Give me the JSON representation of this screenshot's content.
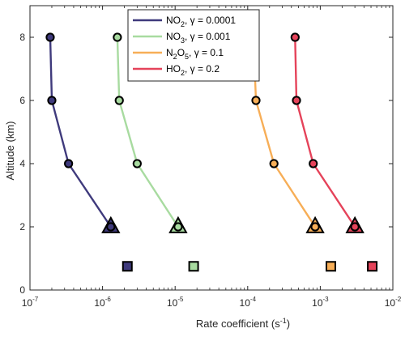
{
  "chart_data": {
    "type": "line",
    "xlabel": "Rate coefficient (s",
    "xlabel_sup": "-1",
    "xlabel_suffix": ")",
    "ylabel": "Altitude (km)",
    "xscale": "log",
    "xlim": [
      1e-07,
      0.01
    ],
    "ylim": [
      0,
      9
    ],
    "x_ticks": [
      {
        "base": "10",
        "exp": "-7"
      },
      {
        "base": "10",
        "exp": "-6"
      },
      {
        "base": "10",
        "exp": "-5"
      },
      {
        "base": "10",
        "exp": "-4"
      },
      {
        "base": "10",
        "exp": "-3"
      },
      {
        "base": "10",
        "exp": "-2"
      }
    ],
    "y_ticks": [
      "0",
      "2",
      "4",
      "6",
      "8"
    ],
    "legend_position": "top-center",
    "series": [
      {
        "name": "NO2, γ = 0.0001",
        "legend": {
          "species": "NO",
          "sub": "2",
          "gamma": ", γ = 0.0001"
        },
        "color": "#3f3a7c",
        "points": [
          {
            "x": 1.3e-06,
            "y": 2
          },
          {
            "x": 3.4e-07,
            "y": 4
          },
          {
            "x": 2e-07,
            "y": 6
          },
          {
            "x": 1.9e-07,
            "y": 8
          }
        ],
        "triangle": {
          "x": 1.3e-06,
          "y": 2
        },
        "square": {
          "x": 2.2e-06,
          "y": 0.75
        }
      },
      {
        "name": "NO3, γ = 0.001",
        "legend": {
          "species": "NO",
          "sub": "3",
          "gamma": ", γ = 0.001"
        },
        "color": "#a8dba0",
        "points": [
          {
            "x": 1.1e-05,
            "y": 2
          },
          {
            "x": 3e-06,
            "y": 4
          },
          {
            "x": 1.7e-06,
            "y": 6
          },
          {
            "x": 1.6e-06,
            "y": 8
          }
        ],
        "triangle": {
          "x": 1.1e-05,
          "y": 2
        },
        "square": {
          "x": 1.8e-05,
          "y": 0.75
        }
      },
      {
        "name": "N2O5, γ = 0.1",
        "legend": {
          "species": "N",
          "sub": "2",
          "species2": "O",
          "sub2": "5",
          "gamma": ", γ = 0.1"
        },
        "color": "#f7ae57",
        "points": [
          {
            "x": 0.00085,
            "y": 2
          },
          {
            "x": 0.00023,
            "y": 4
          },
          {
            "x": 0.00013,
            "y": 6
          },
          {
            "x": 0.00012,
            "y": 8
          }
        ],
        "triangle": {
          "x": 0.00085,
          "y": 2
        },
        "square": {
          "x": 0.0014,
          "y": 0.75
        }
      },
      {
        "name": "HO2, γ = 0.2",
        "legend": {
          "species": "HO",
          "sub": "2",
          "gamma": ", γ = 0.2"
        },
        "color": "#e5435a",
        "points": [
          {
            "x": 0.003,
            "y": 2
          },
          {
            "x": 0.0008,
            "y": 4
          },
          {
            "x": 0.00047,
            "y": 6
          },
          {
            "x": 0.00045,
            "y": 8
          }
        ],
        "triangle": {
          "x": 0.003,
          "y": 2
        },
        "square": {
          "x": 0.0052,
          "y": 0.75
        }
      }
    ]
  }
}
